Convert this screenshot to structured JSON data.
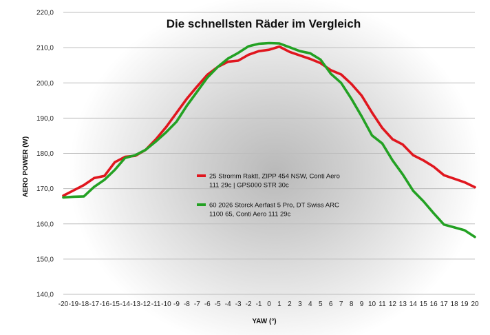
{
  "chart_data": {
    "type": "line",
    "title": "Die schnellsten Räder im Vergleich",
    "xlabel": "YAW (°)",
    "ylabel": "AERO POWER (W)",
    "x": [
      -20,
      -19,
      -18,
      -17,
      -16,
      -15,
      -14,
      -13,
      -12,
      -11,
      -10,
      -9,
      -8,
      -7,
      -6,
      -5,
      -4,
      -3,
      -2,
      -1,
      0,
      1,
      2,
      3,
      4,
      5,
      6,
      7,
      8,
      9,
      10,
      11,
      12,
      13,
      14,
      15,
      16,
      17,
      18,
      19,
      20
    ],
    "x_tick_labels": [
      "-20",
      "-19",
      "-18",
      "-17",
      "-16",
      "-15",
      "-14",
      "-13",
      "-12",
      "-11",
      "-10",
      "-9",
      "-8",
      "-7",
      "-6",
      "-5",
      "-4",
      "-3",
      "-2",
      "-1",
      "0",
      "1",
      "2",
      "3",
      "4",
      "5",
      "6",
      "7",
      "8",
      "9",
      "10",
      "11",
      "12",
      "13",
      "14",
      "15",
      "16",
      "17",
      "18",
      "19",
      "20"
    ],
    "xlim": [
      -20,
      20
    ],
    "ylim": [
      140,
      220
    ],
    "y_ticks": [
      140,
      150,
      160,
      170,
      180,
      190,
      200,
      210,
      220
    ],
    "y_tick_labels": [
      "140,0",
      "150,0",
      "160,0",
      "170,0",
      "180,0",
      "190,0",
      "200,0",
      "210,0",
      "220,0"
    ],
    "grid": "horizontal",
    "legend_position": "center-left",
    "series": [
      {
        "name_lines": [
          "25 Stromm Raktt, ZIPP 454 NSW, Conti Aero",
          "111 29c | GPS000 STR 30c"
        ],
        "color": "#e0161e",
        "values": [
          168.0,
          169.5,
          171.0,
          173.0,
          173.6,
          177.5,
          179.0,
          179.3,
          181.0,
          184.0,
          187.5,
          191.5,
          195.5,
          199.0,
          202.3,
          204.5,
          206.0,
          206.3,
          208.0,
          209.0,
          209.4,
          210.3,
          208.8,
          207.8,
          206.8,
          205.6,
          203.6,
          202.4,
          199.7,
          196.4,
          191.6,
          187.2,
          184.0,
          182.5,
          179.5,
          178.0,
          176.2,
          173.8,
          172.8,
          171.8,
          170.4
        ]
      },
      {
        "name_lines": [
          "60 2026 Storck Aerfast 5 Pro, DT Swiss ARC",
          "1100 65, Conti Aero 111 29c"
        ],
        "color": "#23a123",
        "values": [
          167.5,
          167.7,
          167.8,
          170.5,
          172.5,
          175.3,
          178.7,
          179.5,
          181.0,
          183.4,
          186.0,
          189.0,
          193.5,
          197.5,
          201.5,
          204.5,
          206.9,
          208.5,
          210.4,
          211.1,
          211.3,
          211.2,
          210.1,
          209.0,
          208.4,
          206.6,
          202.6,
          200.0,
          195.5,
          190.5,
          185.1,
          182.8,
          178.0,
          174.0,
          169.4,
          166.4,
          163.0,
          159.8,
          159.0,
          158.2,
          156.3
        ]
      }
    ]
  }
}
